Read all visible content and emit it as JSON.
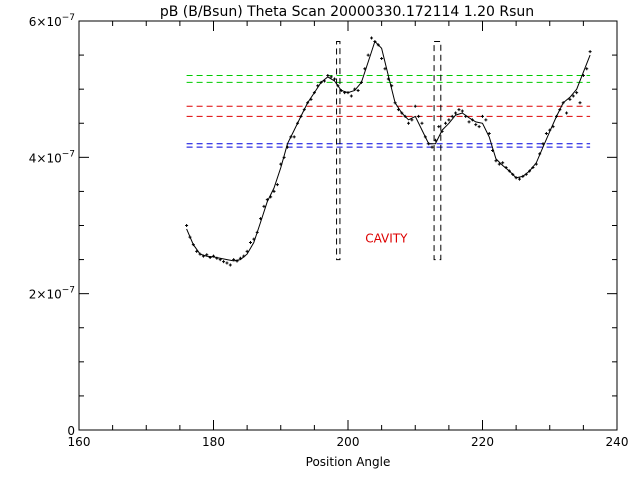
{
  "chart_data": {
    "type": "scatter",
    "title": "pB (B/Bsun) Theta Scan 20000330.172114 1.20 Rsun",
    "xlabel": "Position Angle",
    "ylabel": "",
    "xlim": [
      160,
      240
    ],
    "ylim": [
      0,
      6e-07
    ],
    "x_ticks": [
      "160",
      "180",
      "200",
      "220",
      "240"
    ],
    "y_ticks": [
      "0",
      "2×10",
      "4×10",
      "6×10"
    ],
    "y_tick_exponent": "−7",
    "grid": false,
    "series": [
      {
        "marker": "plus",
        "color": "#000000",
        "x": [
          176,
          176.5,
          177,
          177.5,
          178,
          178.5,
          179,
          179.5,
          180,
          180.5,
          181,
          181.5,
          182,
          182.5,
          183,
          183.5,
          184,
          184.5,
          185,
          185.5,
          186,
          186.5,
          187,
          187.5,
          188,
          188.5,
          189,
          189.5,
          190,
          190.5,
          191,
          191.5,
          192,
          192.5,
          193,
          193.5,
          194,
          194.5,
          195,
          195.5,
          196,
          196.5,
          197,
          197.5,
          198,
          198.5,
          199,
          199.5,
          200,
          200.5,
          201,
          201.5,
          202,
          202.5,
          203,
          203.5,
          204,
          204.5,
          205,
          205.5,
          206,
          206.5,
          207,
          207.5,
          208,
          208.5,
          209,
          209.5,
          210,
          210.5,
          211,
          211.5,
          212,
          212.5,
          213,
          213.5,
          214,
          214.5,
          215,
          215.5,
          216,
          216.5,
          217,
          217.5,
          218,
          218.5,
          219,
          219.5,
          220,
          220.5,
          221,
          221.5,
          222,
          222.5,
          223,
          223.5,
          224,
          224.5,
          225,
          225.5,
          226,
          226.5,
          227,
          227.5,
          228,
          228.5,
          229,
          229.5,
          230,
          230.5,
          231,
          231.5,
          232,
          232.5,
          233,
          233.5,
          234,
          234.5,
          235,
          235.5,
          236
        ],
        "y": [
          3e-07,
          2.83e-07,
          2.72e-07,
          2.62e-07,
          2.58e-07,
          2.55e-07,
          2.57e-07,
          2.53e-07,
          2.55e-07,
          2.52e-07,
          2.5e-07,
          2.47e-07,
          2.45e-07,
          2.42e-07,
          2.5e-07,
          2.48e-07,
          2.52e-07,
          2.55e-07,
          2.62e-07,
          2.75e-07,
          2.8e-07,
          2.9e-07,
          3.1e-07,
          3.28e-07,
          3.38e-07,
          3.42e-07,
          3.5e-07,
          3.6e-07,
          3.9e-07,
          4e-07,
          4.15e-07,
          4.3e-07,
          4.3e-07,
          4.5e-07,
          4.6e-07,
          4.7e-07,
          4.8e-07,
          4.85e-07,
          4.95e-07,
          5.05e-07,
          5.1e-07,
          5.12e-07,
          5.2e-07,
          5.18e-07,
          5.15e-07,
          5.05e-07,
          4.98e-07,
          4.95e-07,
          4.95e-07,
          4.9e-07,
          5e-07,
          4.98e-07,
          5.1e-07,
          5.3e-07,
          5.5e-07,
          5.75e-07,
          5.7e-07,
          5.65e-07,
          5.45e-07,
          5.3e-07,
          5.15e-07,
          5.05e-07,
          4.8e-07,
          4.7e-07,
          4.65e-07,
          4.6e-07,
          4.5e-07,
          4.55e-07,
          4.75e-07,
          4.6e-07,
          4.5e-07,
          4.3e-07,
          4.2e-07,
          4.15e-07,
          4.25e-07,
          4.45e-07,
          4.38e-07,
          4.5e-07,
          4.55e-07,
          4.6e-07,
          4.65e-07,
          4.7e-07,
          4.68e-07,
          4.6e-07,
          4.52e-07,
          4.55e-07,
          4.48e-07,
          4.45e-07,
          4.6e-07,
          4.55e-07,
          4.35e-07,
          4.1e-07,
          3.95e-07,
          3.9e-07,
          3.92e-07,
          3.85e-07,
          3.8e-07,
          3.75e-07,
          3.7e-07,
          3.68e-07,
          3.72e-07,
          3.75e-07,
          3.8e-07,
          3.85e-07,
          3.9e-07,
          4.05e-07,
          4.2e-07,
          4.35e-07,
          4.4e-07,
          4.45e-07,
          4.6e-07,
          4.7e-07,
          4.8e-07,
          4.65e-07,
          4.85e-07,
          4.9e-07,
          4.95e-07,
          4.8e-07,
          5.2e-07,
          5.3e-07,
          5.55e-07
        ]
      },
      {
        "type": "line",
        "color": "#000000",
        "x": [
          176,
          177,
          178,
          179,
          180,
          181,
          182,
          183,
          184,
          185,
          186,
          187,
          188,
          189,
          190,
          191,
          192,
          193,
          194,
          195,
          196,
          197,
          198,
          199,
          200,
          201,
          202,
          203,
          204,
          205,
          206,
          207,
          208,
          209,
          210,
          211,
          212,
          213,
          214,
          215,
          216,
          217,
          218,
          219,
          220,
          221,
          222,
          223,
          224,
          225,
          226,
          227,
          228,
          229,
          230,
          231,
          232,
          233,
          234,
          235,
          236
        ],
        "y": [
          2.95e-07,
          2.72e-07,
          2.58e-07,
          2.55e-07,
          2.54e-07,
          2.52e-07,
          2.5e-07,
          2.48e-07,
          2.5e-07,
          2.58e-07,
          2.75e-07,
          3.05e-07,
          3.35e-07,
          3.55e-07,
          3.85e-07,
          4.2e-07,
          4.4e-07,
          4.6e-07,
          4.8e-07,
          4.95e-07,
          5.1e-07,
          5.18e-07,
          5.12e-07,
          4.98e-07,
          4.95e-07,
          4.98e-07,
          5.1e-07,
          5.4e-07,
          5.7e-07,
          5.6e-07,
          5.2e-07,
          4.8e-07,
          4.65e-07,
          4.55e-07,
          4.6e-07,
          4.4e-07,
          4.2e-07,
          4.2e-07,
          4.4e-07,
          4.5e-07,
          4.62e-07,
          4.65e-07,
          4.58e-07,
          4.52e-07,
          4.5e-07,
          4.3e-07,
          3.98e-07,
          3.88e-07,
          3.8e-07,
          3.7e-07,
          3.72e-07,
          3.8e-07,
          3.92e-07,
          4.15e-07,
          4.38e-07,
          4.6e-07,
          4.8e-07,
          4.88e-07,
          5e-07,
          5.25e-07,
          5.5e-07
        ]
      }
    ],
    "reference_lines": [
      {
        "y": 5.2e-07,
        "color": "#00cc00",
        "dash": "dashed",
        "x_range": [
          176,
          236
        ]
      },
      {
        "y": 5.1e-07,
        "color": "#00cc00",
        "dash": "dashed",
        "x_range": [
          176,
          236
        ]
      },
      {
        "y": 4.75e-07,
        "color": "#dd0000",
        "dash": "dashed",
        "x_range": [
          176,
          236
        ]
      },
      {
        "y": 4.6e-07,
        "color": "#dd0000",
        "dash": "dashed",
        "x_range": [
          176,
          236
        ]
      },
      {
        "y": 4.2e-07,
        "color": "#0000dd",
        "dash": "dashed",
        "x_range": [
          176,
          236
        ]
      },
      {
        "y": 4.15e-07,
        "color": "#0000dd",
        "dash": "dashed",
        "x_range": [
          176,
          236
        ]
      }
    ],
    "cavity_boxes": [
      {
        "x0": 198.3,
        "x1": 198.8,
        "y0": 2.5e-07,
        "y1": 5.7e-07
      },
      {
        "x0": 212.8,
        "x1": 213.8,
        "y0": 2.5e-07,
        "y1": 5.7e-07
      }
    ],
    "annotations": [
      {
        "text": "CAVITY",
        "x": 205.7,
        "y": 2.75e-07,
        "color": "#dd0000"
      }
    ]
  }
}
